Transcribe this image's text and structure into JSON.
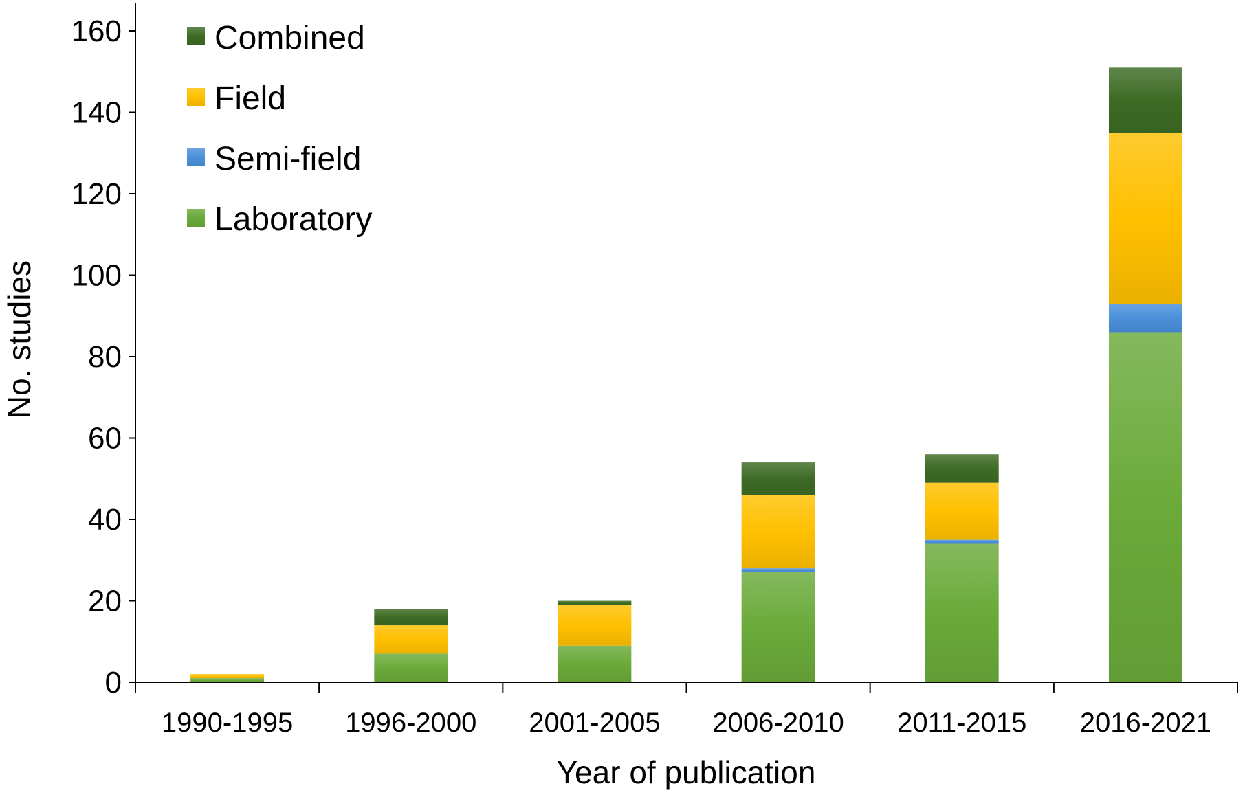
{
  "chart_data": {
    "type": "bar",
    "stacked": true,
    "title": "",
    "xlabel": "Year of publication",
    "ylabel": "No. studies",
    "ylim": [
      0,
      160
    ],
    "yticks": [
      0,
      20,
      40,
      60,
      80,
      100,
      120,
      140,
      160
    ],
    "grid": false,
    "legend_position": "top-left",
    "categories": [
      "1990-1995",
      "1996-2000",
      "2001-2005",
      "2006-2010",
      "2011-2015",
      "2016-2021"
    ],
    "series": [
      {
        "name": "Laboratory",
        "color": "#6aaa3a",
        "values": [
          1,
          7,
          9,
          27,
          34,
          86
        ]
      },
      {
        "name": "Semi-field",
        "color": "#4a90d9",
        "values": [
          0,
          0,
          0,
          1,
          1,
          7
        ]
      },
      {
        "name": "Field",
        "color": "#ffc000",
        "values": [
          1,
          7,
          10,
          18,
          14,
          42
        ]
      },
      {
        "name": "Combined",
        "color": "#3d6b24",
        "values": [
          0,
          4,
          1,
          8,
          7,
          16
        ]
      }
    ],
    "legend_order": [
      "Combined",
      "Field",
      "Semi-field",
      "Laboratory"
    ]
  }
}
